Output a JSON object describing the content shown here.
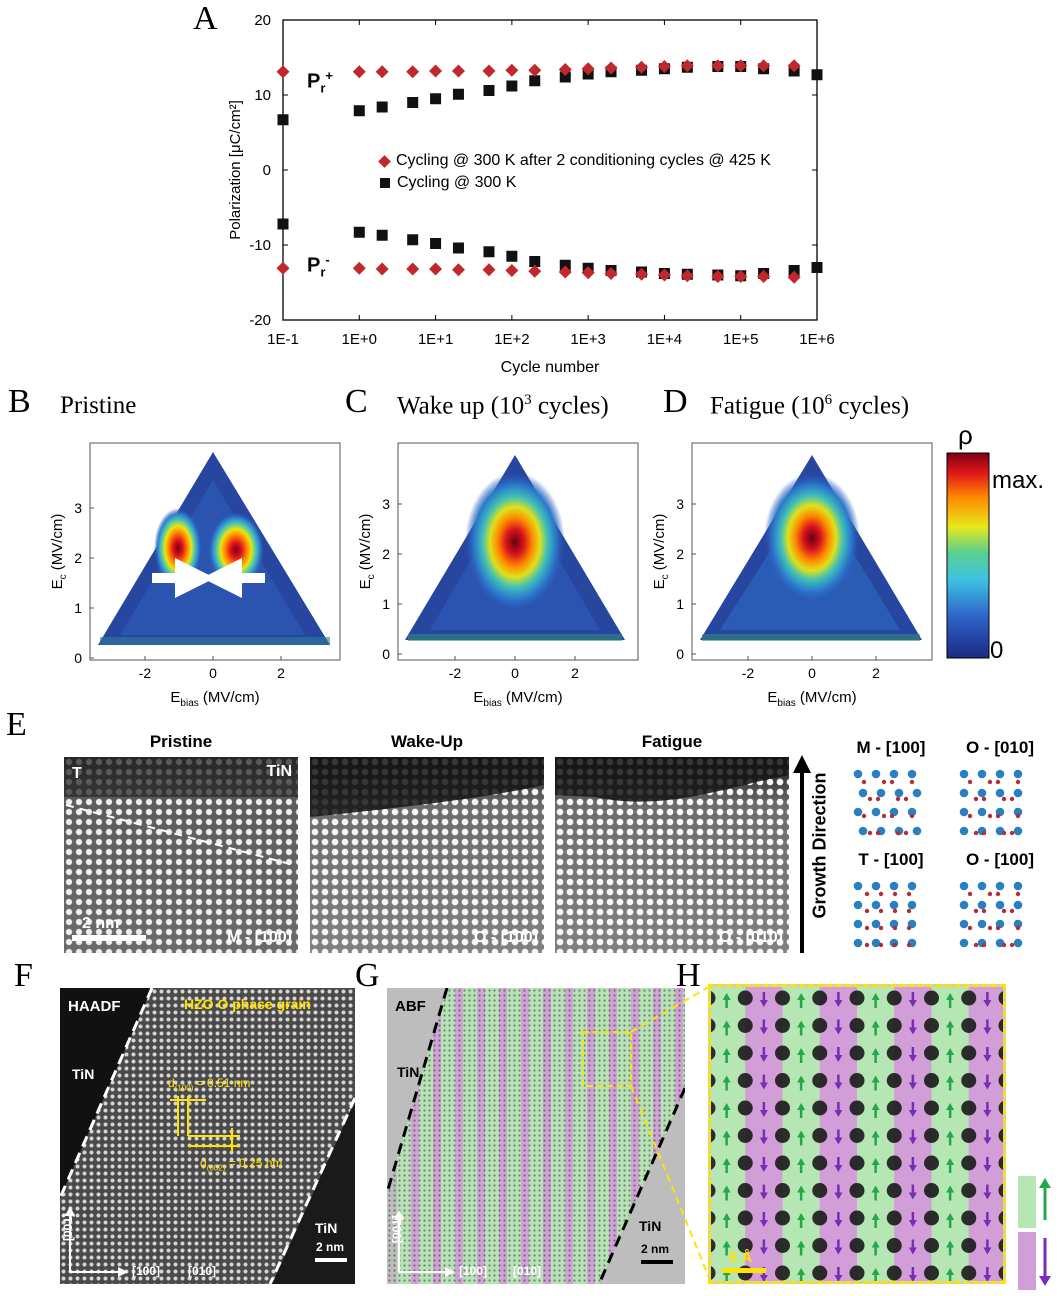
{
  "panel_a": {
    "label": "A",
    "pr_plus": "P",
    "pr_plus_sub": "r",
    "pr_plus_sup": "+",
    "pr_minus": "P",
    "pr_minus_sub": "r",
    "pr_minus_sup": "-",
    "chart_data": {
      "type": "scatter",
      "title": "",
      "xlabel": "Cycle number",
      "ylabel": "Polarization [μC/cm²]",
      "xscale": "log",
      "x_ticks": [
        "1E-1",
        "1E+0",
        "1E+1",
        "1E+2",
        "1E+3",
        "1E+4",
        "1E+5",
        "1E+6"
      ],
      "y_ticks": [
        "20",
        "10",
        "0",
        "-10",
        "-20"
      ],
      "ylim": [
        -20,
        20
      ],
      "xlim_log10": [
        -1,
        6
      ],
      "legend": "center",
      "series": [
        {
          "name": "Cycling @ 300 K after 2 conditioning cycles @ 425 K",
          "color": "#c0282d",
          "marker": "diamond",
          "x_log10": [
            -1,
            0,
            0.3,
            0.7,
            1,
            1.3,
            1.7,
            2,
            2.3,
            2.7,
            3,
            3.3,
            3.7,
            4,
            4.3,
            4.7,
            5,
            5.3,
            5.7
          ],
          "pos": [
            13.1,
            13.1,
            13.1,
            13.1,
            13.2,
            13.2,
            13.2,
            13.3,
            13.3,
            13.4,
            13.5,
            13.6,
            13.7,
            13.8,
            13.9,
            13.9,
            13.9,
            13.9,
            13.9
          ],
          "neg": [
            -13.1,
            -13.1,
            -13.2,
            -13.2,
            -13.2,
            -13.3,
            -13.3,
            -13.4,
            -13.5,
            -13.6,
            -13.7,
            -13.8,
            -13.9,
            -14.0,
            -14.1,
            -14.2,
            -14.2,
            -14.2,
            -14.3
          ]
        },
        {
          "name": "Cycling @ 300 K",
          "color": "#111111",
          "marker": "square",
          "x_log10": [
            -1,
            0,
            0.3,
            0.7,
            1,
            1.3,
            1.7,
            2,
            2.3,
            2.7,
            3,
            3.3,
            3.7,
            4,
            4.3,
            4.7,
            5,
            5.3,
            5.7,
            6
          ],
          "pos": [
            6.7,
            7.9,
            8.4,
            9.0,
            9.5,
            10.1,
            10.6,
            11.2,
            11.9,
            12.4,
            12.8,
            13.1,
            13.3,
            13.5,
            13.7,
            13.8,
            13.8,
            13.5,
            13.2,
            12.7
          ],
          "neg": [
            -7.2,
            -8.3,
            -8.7,
            -9.3,
            -9.8,
            -10.4,
            -10.9,
            -11.5,
            -12.2,
            -12.7,
            -13.1,
            -13.4,
            -13.6,
            -13.8,
            -13.9,
            -14.0,
            -14.1,
            -13.8,
            -13.4,
            -13.0
          ]
        }
      ]
    }
  },
  "panel_b": {
    "label": "B",
    "title": "Pristine"
  },
  "panel_c": {
    "label": "C",
    "title_pre": "Wake up (10",
    "title_sup": "3",
    "title_post": " cycles)"
  },
  "panel_d": {
    "label": "D",
    "title_pre": "Fatigue (10",
    "title_sup": "6",
    "title_post": " cycles)"
  },
  "forc_axes": {
    "y_label": "E",
    "y_label_sub": "c",
    "y_label_units": " (MV/cm)",
    "x_label": "E",
    "x_label_sub": "bias",
    "x_label_units": " (MV/cm)",
    "y_ticks": [
      "0",
      "1",
      "2",
      "3"
    ],
    "x_ticks": [
      "-2",
      "0",
      "2"
    ]
  },
  "colorbar": {
    "symbol": "ρ",
    "max_label": "max.",
    "min_label": "0"
  },
  "panel_e": {
    "label": "E",
    "titles": [
      "Pristine",
      "Wake-Up",
      "Fatigue"
    ],
    "corner_t": "T",
    "corner_tin": "TiN",
    "scale": "2 nm",
    "phases": [
      "M - [100]",
      "O - [100]",
      "O - [010]"
    ],
    "growth_direction": "Growth Direction",
    "structures": [
      "M - [100]",
      "O - [010]",
      "T - [100]",
      "O - [100]"
    ]
  },
  "panel_f": {
    "label": "F",
    "mode": "HAADF",
    "grain": "HZO O phase grain",
    "tin_top": "TiN",
    "tin_bottom": "TiN",
    "d100": "d",
    "d100_sub": "(100)",
    "d100_val": " = 0.51 nm",
    "d002": "d",
    "d002_sub": "(002)",
    "d002_val": " = 0.25 nm",
    "axis_001": "[001]",
    "axis_100": "[100]",
    "axis_010": "[010]",
    "scale": "2 nm"
  },
  "panel_g": {
    "label": "G",
    "mode": "ABF",
    "tin_top": "TiN",
    "tin_bottom": "TiN",
    "axis_001": "[001]",
    "axis_100": "[100]",
    "axis_010": "[010]",
    "scale": "2 nm"
  },
  "panel_h": {
    "label": "H",
    "scale": "5 Å"
  },
  "colors": {
    "red_marker": "#c0282d",
    "black_marker": "#111111",
    "green_band": "#b5e6b4",
    "purple_band": "#d29ed8",
    "green_arrow": "#21a84a",
    "purple_arrow": "#7a2bb8",
    "annotation_yellow": "#ffe200"
  }
}
